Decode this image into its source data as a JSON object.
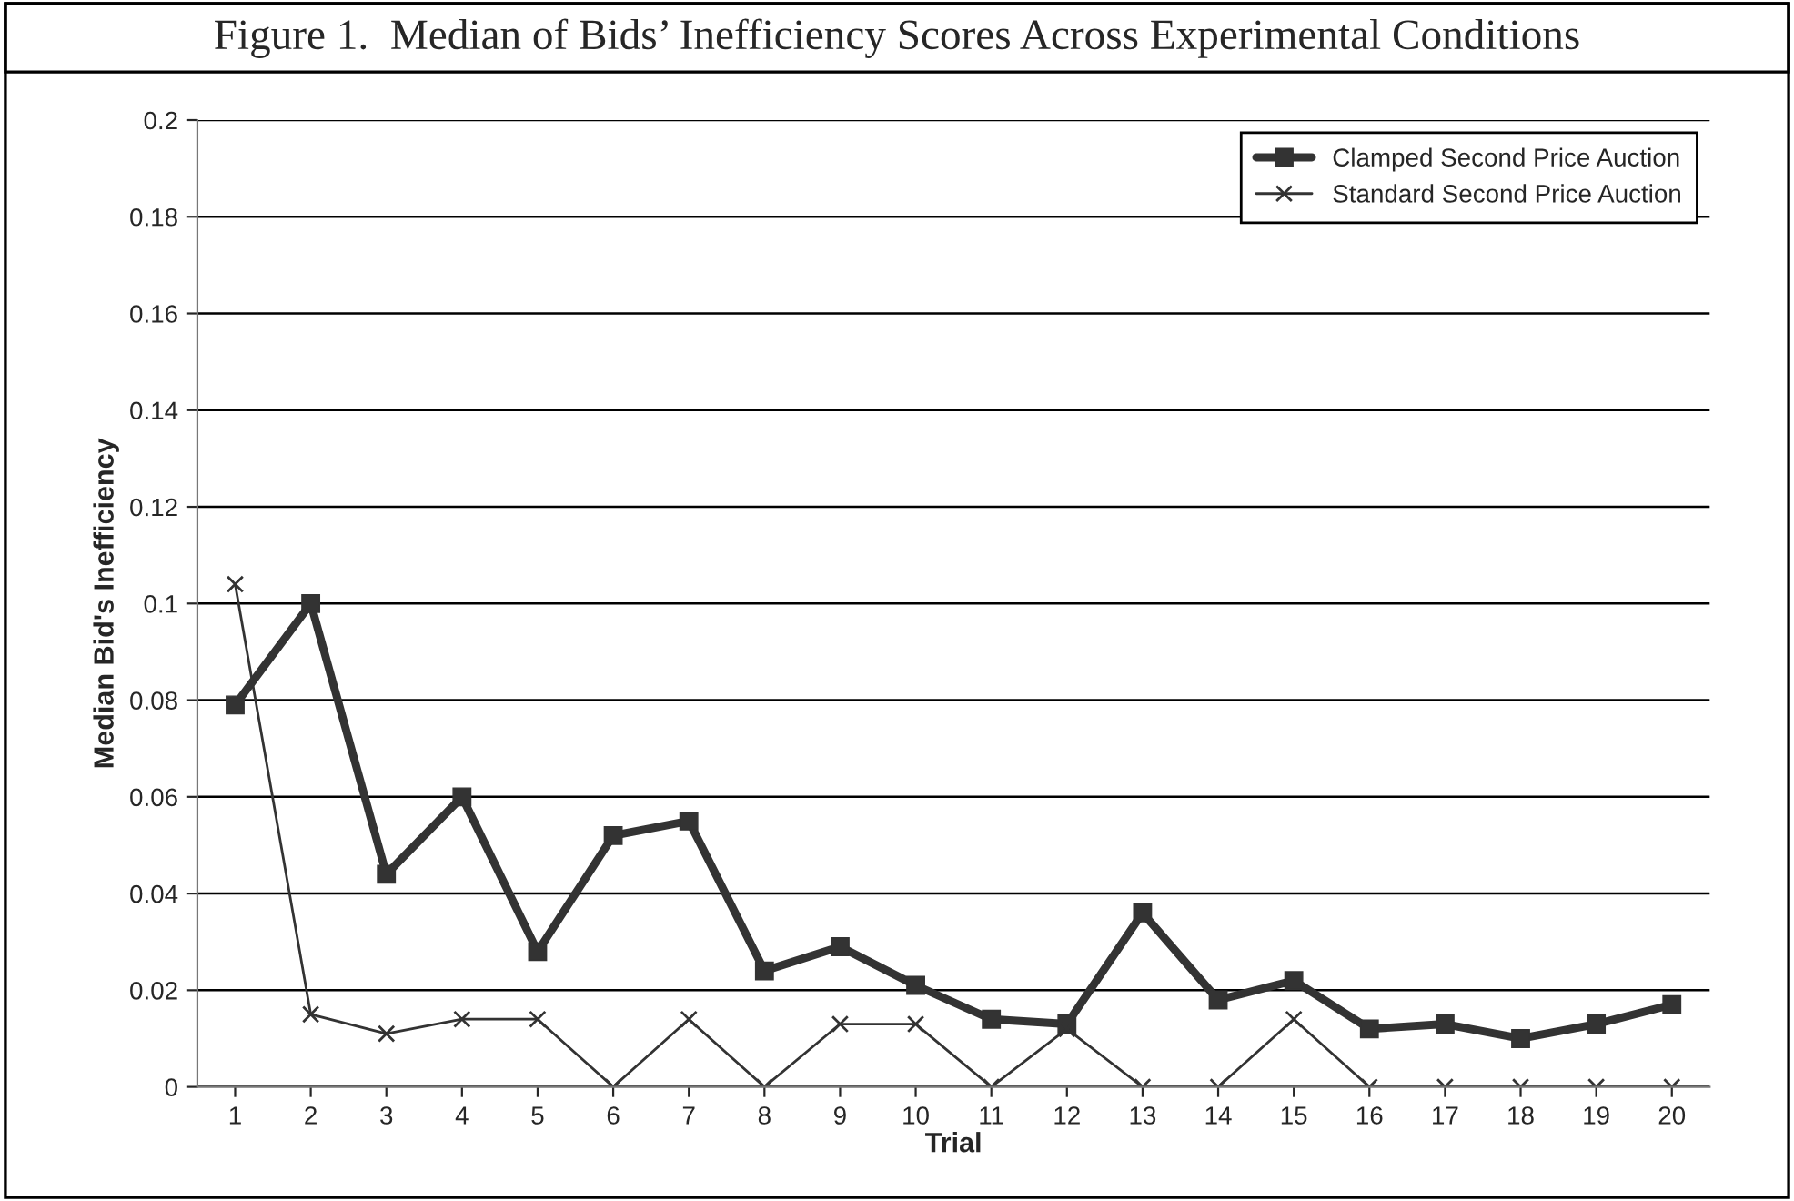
{
  "chart_data": {
    "type": "line",
    "title": "Figure 1.  Median of Bids’ Inefficiency Scores Across Experimental Conditions",
    "xlabel": "Trial",
    "ylabel": "Median Bid's Inefficiency",
    "categories": [
      "1",
      "2",
      "3",
      "4",
      "5",
      "6",
      "7",
      "8",
      "9",
      "10",
      "11",
      "12",
      "13",
      "14",
      "15",
      "16",
      "17",
      "18",
      "19",
      "20"
    ],
    "series": [
      {
        "name": "Clamped Second Price Auction",
        "color": "#333333",
        "marker": "square",
        "values": [
          0.079,
          0.1,
          0.044,
          0.06,
          0.028,
          0.052,
          0.055,
          0.024,
          0.029,
          0.021,
          0.014,
          0.013,
          0.036,
          0.018,
          0.022,
          0.012,
          0.013,
          0.01,
          0.013,
          0.017
        ]
      },
      {
        "name": "Standard Second Price Auction",
        "color": "#333333",
        "marker": "cross",
        "values": [
          0.104,
          0.015,
          0.011,
          0.014,
          0.014,
          0,
          0.014,
          0,
          0.013,
          0.013,
          0,
          0.012,
          0,
          0,
          0.014,
          0,
          0,
          0,
          0,
          0
        ]
      }
    ],
    "ylim": [
      0,
      0.2
    ],
    "yticks": [
      0,
      0.02,
      0.04,
      0.06,
      0.08,
      0.1,
      0.12,
      0.14,
      0.16,
      0.18,
      0.2
    ],
    "grid": "y",
    "legend": "top right"
  }
}
